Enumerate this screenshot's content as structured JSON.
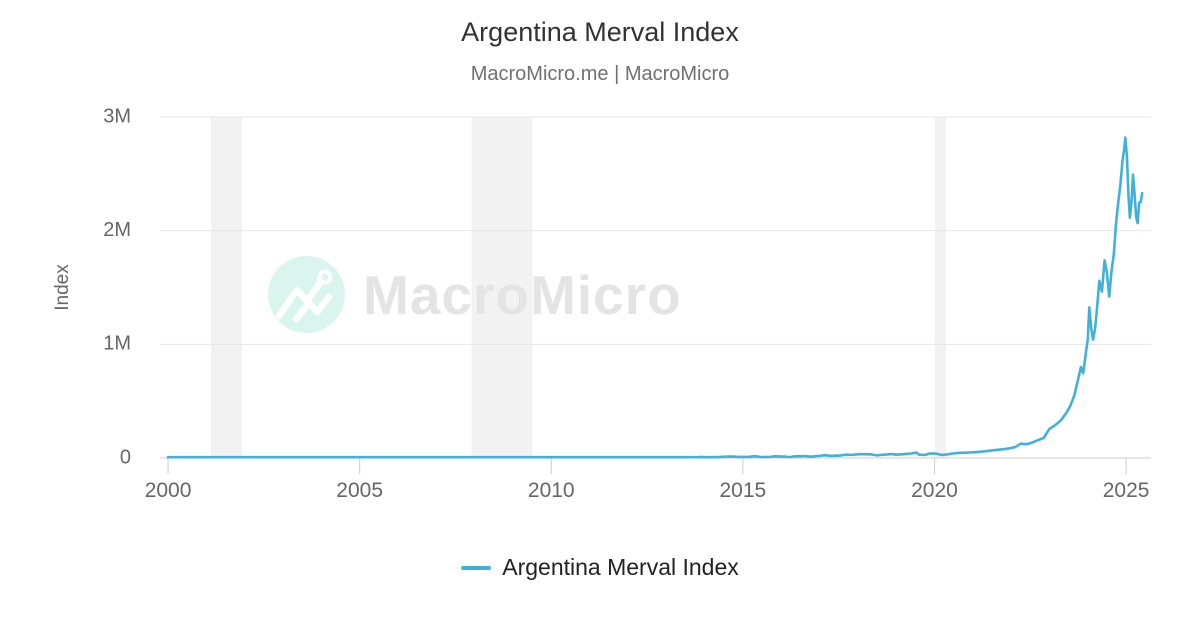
{
  "header": {
    "title": "Argentina Merval Index",
    "subtitle": "MacroMicro.me | MacroMicro"
  },
  "watermark": {
    "brand": "MacroMicro",
    "circle_color": "#d9f5ee",
    "glyph": "mountain-chart-icon",
    "text_color": "#e4e4e4"
  },
  "legend": {
    "items": [
      {
        "label": "Argentina Merval Index",
        "color": "#41b1db"
      }
    ]
  },
  "colors": {
    "line": "#41b1db",
    "grid": "#e6e6e6",
    "axis": "#cccccc",
    "recession_band": "#f2f2f2",
    "tick_text": "#666666",
    "title_text": "#333333",
    "subtitle_text": "#707070",
    "legend_text": "#222222"
  },
  "chart_data": {
    "type": "line",
    "title": "Argentina Merval Index",
    "subtitle": "MacroMicro.me | MacroMicro",
    "xlabel": "",
    "ylabel": "Index",
    "xlim": [
      1999.79,
      2025.65
    ],
    "ylim": [
      0,
      3000000
    ],
    "x_ticks": [
      2000,
      2005,
      2010,
      2015,
      2020,
      2025
    ],
    "y_ticks": [
      {
        "value": 0,
        "label": "0"
      },
      {
        "value": 1000000,
        "label": "1M"
      },
      {
        "value": 2000000,
        "label": "2M"
      },
      {
        "value": 3000000,
        "label": "3M"
      }
    ],
    "grid": true,
    "legend_position": "bottom",
    "recession_bands": [
      [
        2001.12,
        2001.93
      ],
      [
        2007.92,
        2009.51
      ],
      [
        2020.01,
        2020.3
      ]
    ],
    "series": [
      {
        "name": "Argentina Merval Index",
        "color": "#41b1db",
        "points": [
          [
            2000.0,
            560
          ],
          [
            2000.25,
            505
          ],
          [
            2000.5,
            480
          ],
          [
            2000.75,
            430
          ],
          [
            2001.0,
            410
          ],
          [
            2001.25,
            380
          ],
          [
            2001.5,
            315
          ],
          [
            2001.75,
            255
          ],
          [
            2001.95,
            220
          ],
          [
            2002.1,
            300
          ],
          [
            2002.35,
            370
          ],
          [
            2002.6,
            440
          ],
          [
            2002.85,
            510
          ],
          [
            2003.1,
            580
          ],
          [
            2003.35,
            680
          ],
          [
            2003.6,
            780
          ],
          [
            2003.85,
            1000
          ],
          [
            2004.1,
            1200
          ],
          [
            2004.35,
            1230
          ],
          [
            2004.6,
            1060
          ],
          [
            2004.85,
            1280
          ],
          [
            2005.1,
            1450
          ],
          [
            2005.35,
            1520
          ],
          [
            2005.6,
            1440
          ],
          [
            2005.85,
            1540
          ],
          [
            2006.1,
            1680
          ],
          [
            2006.35,
            1720
          ],
          [
            2006.6,
            1800
          ],
          [
            2006.85,
            1980
          ],
          [
            2007.1,
            2120
          ],
          [
            2007.35,
            2180
          ],
          [
            2007.6,
            2270
          ],
          [
            2007.85,
            2210
          ],
          [
            2008.1,
            2100
          ],
          [
            2008.35,
            2000
          ],
          [
            2008.6,
            1850
          ],
          [
            2008.8,
            1150
          ],
          [
            2009.0,
            1090
          ],
          [
            2009.25,
            1220
          ],
          [
            2009.5,
            1600
          ],
          [
            2009.75,
            2050
          ],
          [
            2010.0,
            2320
          ],
          [
            2010.25,
            2400
          ],
          [
            2010.5,
            2480
          ],
          [
            2010.75,
            2900
          ],
          [
            2011.0,
            3580
          ],
          [
            2011.25,
            3380
          ],
          [
            2011.5,
            3100
          ],
          [
            2011.75,
            2700
          ],
          [
            2012.0,
            2680
          ],
          [
            2012.25,
            2730
          ],
          [
            2012.5,
            2400
          ],
          [
            2012.75,
            2500
          ],
          [
            2013.0,
            3250
          ],
          [
            2013.25,
            3450
          ],
          [
            2013.5,
            3900
          ],
          [
            2013.75,
            4800
          ],
          [
            2014.0,
            5500
          ],
          [
            2014.25,
            6400
          ],
          [
            2014.5,
            7900
          ],
          [
            2014.7,
            11500
          ],
          [
            2014.9,
            8700
          ],
          [
            2015.1,
            9700
          ],
          [
            2015.35,
            11800
          ],
          [
            2015.6,
            11000
          ],
          [
            2015.85,
            11700
          ],
          [
            2016.1,
            12500
          ],
          [
            2016.35,
            13300
          ],
          [
            2016.6,
            14800
          ],
          [
            2016.85,
            16900
          ],
          [
            2017.1,
            19500
          ],
          [
            2017.35,
            21700
          ],
          [
            2017.6,
            23800
          ],
          [
            2017.85,
            27500
          ],
          [
            2018.05,
            32500
          ],
          [
            2018.25,
            31000
          ],
          [
            2018.5,
            27500
          ],
          [
            2018.75,
            29000
          ],
          [
            2019.0,
            31500
          ],
          [
            2019.2,
            34000
          ],
          [
            2019.4,
            38500
          ],
          [
            2019.52,
            44500
          ],
          [
            2019.6,
            26500
          ],
          [
            2019.75,
            30500
          ],
          [
            2019.9,
            37500
          ],
          [
            2020.05,
            41500
          ],
          [
            2020.2,
            24500
          ],
          [
            2020.35,
            32500
          ],
          [
            2020.5,
            40000
          ],
          [
            2020.65,
            43500
          ],
          [
            2020.8,
            47500
          ],
          [
            2021.0,
            51500
          ],
          [
            2021.15,
            49000
          ],
          [
            2021.35,
            56000
          ],
          [
            2021.55,
            65000
          ],
          [
            2021.75,
            74000
          ],
          [
            2021.95,
            84000
          ],
          [
            2022.1,
            92000
          ],
          [
            2022.25,
            128000
          ],
          [
            2022.4,
            118000
          ],
          [
            2022.55,
            138000
          ],
          [
            2022.7,
            155000
          ],
          [
            2022.85,
            178000
          ],
          [
            2023.0,
            255000
          ],
          [
            2023.15,
            290000
          ],
          [
            2023.3,
            335000
          ],
          [
            2023.45,
            400000
          ],
          [
            2023.55,
            460000
          ],
          [
            2023.65,
            550000
          ],
          [
            2023.75,
            690000
          ],
          [
            2023.82,
            800000
          ],
          [
            2023.88,
            745000
          ],
          [
            2023.94,
            890000
          ],
          [
            2024.0,
            1070000
          ],
          [
            2024.04,
            1310000
          ],
          [
            2024.09,
            1160000
          ],
          [
            2024.14,
            1030000
          ],
          [
            2024.19,
            1160000
          ],
          [
            2024.24,
            1300000
          ],
          [
            2024.3,
            1580000
          ],
          [
            2024.37,
            1470000
          ],
          [
            2024.44,
            1730000
          ],
          [
            2024.5,
            1640000
          ],
          [
            2024.56,
            1430000
          ],
          [
            2024.62,
            1610000
          ],
          [
            2024.68,
            1810000
          ],
          [
            2024.74,
            2080000
          ],
          [
            2024.8,
            2250000
          ],
          [
            2024.85,
            2430000
          ],
          [
            2024.9,
            2580000
          ],
          [
            2024.95,
            2760000
          ],
          [
            2024.98,
            2830000
          ],
          [
            2025.02,
            2620000
          ],
          [
            2025.06,
            2340000
          ],
          [
            2025.1,
            2090000
          ],
          [
            2025.14,
            2290000
          ],
          [
            2025.18,
            2490000
          ],
          [
            2025.22,
            2310000
          ],
          [
            2025.26,
            2130000
          ],
          [
            2025.3,
            2040000
          ],
          [
            2025.34,
            2290000
          ],
          [
            2025.38,
            2240000
          ],
          [
            2025.42,
            2330000
          ]
        ]
      }
    ]
  }
}
